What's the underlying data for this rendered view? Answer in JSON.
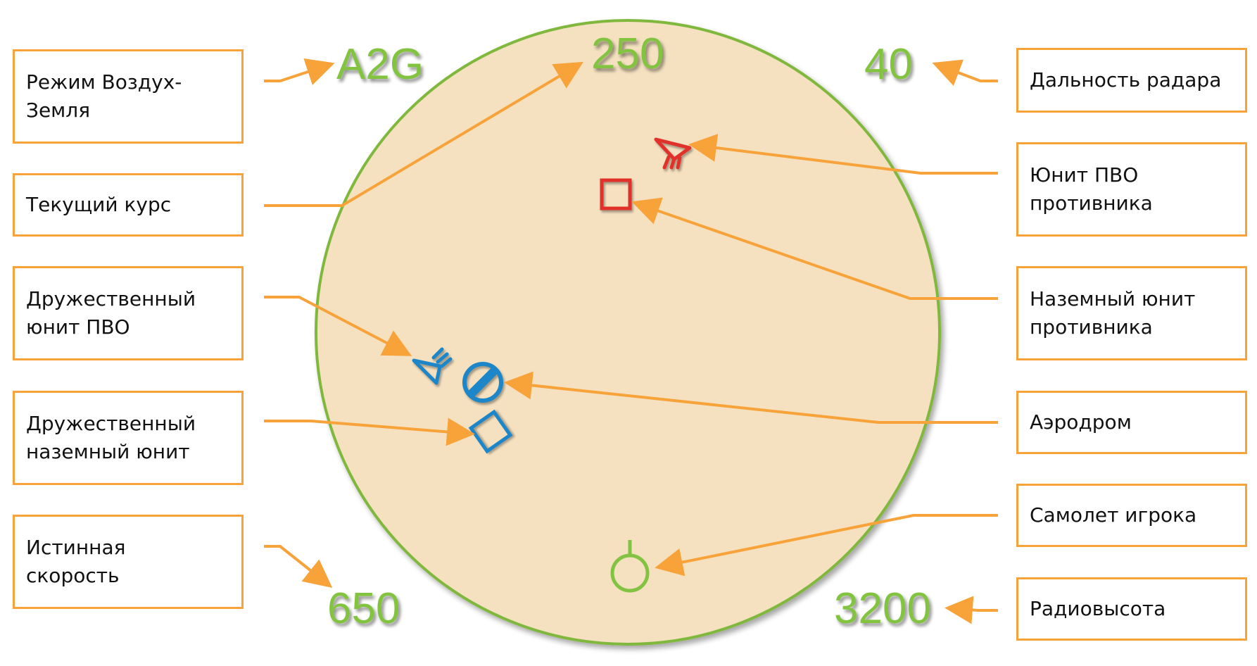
{
  "colors": {
    "box_border": "#f7a33a",
    "arrow": "#f7a33a",
    "radar_fill": "#f5e1c0",
    "radar_rim": "#7fb83e",
    "readout_green": "#82c341",
    "enemy_red": "#e0322a",
    "friendly_blue": "#1b86c8",
    "player_green": "#82c341"
  },
  "display": {
    "mode": "A2G",
    "heading": "250",
    "radar_range": "40",
    "true_airspeed": "650",
    "radio_altitude": "3200"
  },
  "labels": {
    "mode": "Режим Воздух-\nЗемля",
    "heading": "Текущий курс",
    "friendly_sam": "Дружественный\nюнит ПВО",
    "friendly_ground": "Дружественный\nназемный юнит",
    "true_airspeed": "Истинная\nскорость",
    "radar_range": "Дальность радара",
    "enemy_sam": "Юнит ПВО\nпротивника",
    "enemy_ground": "Наземный юнит\nпротивника",
    "airfield": "Аэродром",
    "player_aircraft": "Самолет игрока",
    "radio_altitude": "Радиовысота"
  },
  "icons": {
    "enemy_sam": "enemy-sam-icon",
    "enemy_ground": "enemy-ground-unit-icon",
    "friendly_sam": "friendly-sam-icon",
    "friendly_ground": "friendly-ground-unit-icon",
    "airfield": "airfield-icon",
    "player_aircraft": "player-aircraft-icon"
  }
}
